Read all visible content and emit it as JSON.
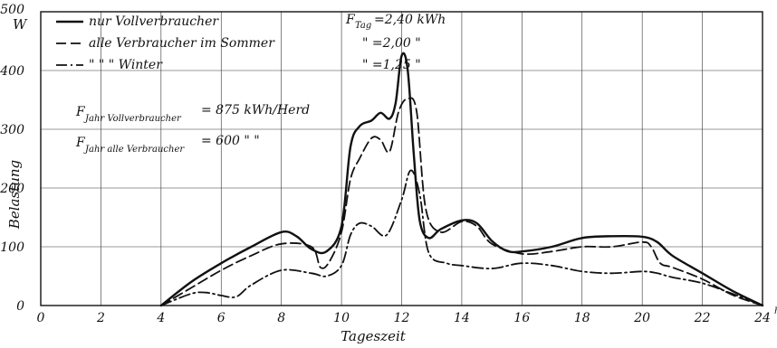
{
  "chart_data": {
    "type": "line",
    "ylabel": "Belastung",
    "yunit": "W",
    "xlabel": "Tageszeit",
    "xunit": "h",
    "xlim": [
      0,
      24
    ],
    "ylim": [
      0,
      500
    ],
    "xticks": [
      0,
      2,
      4,
      6,
      8,
      10,
      12,
      14,
      16,
      18,
      20,
      22,
      24
    ],
    "yticks": [
      0,
      100,
      200,
      300,
      400,
      500
    ],
    "grid": true,
    "legend_position": "top-left",
    "legend": [
      {
        "dash": "solid",
        "label": "nur Vollverbraucher",
        "value": "F",
        "value_sub": "Tag",
        "value_text": "=2,40 kWh"
      },
      {
        "dash": "dashed",
        "label": "alle Verbraucher im Sommer",
        "value_text": "\" =2,00 \""
      },
      {
        "dash": "dashdot",
        "label": "\"           \"           \" Winter",
        "value_text": "\" =1,25 \""
      }
    ],
    "annotations": [
      {
        "main": "F",
        "sub": "Jahr Vollverbraucher",
        "text": "= 875 kWh/Herd"
      },
      {
        "main": "F",
        "sub": "Jahr alle Verbraucher",
        "text": "= 600   \"     \""
      }
    ],
    "series": [
      {
        "dash": "solid",
        "x": [
          4,
          5,
          6,
          7,
          8,
          8.5,
          9,
          9.5,
          10,
          10.3,
          10.6,
          11,
          11.3,
          11.6,
          11.8,
          12,
          12.2,
          12.4,
          12.6,
          12.9,
          13.3,
          14,
          14.5,
          15,
          15.5,
          16,
          17,
          18,
          19,
          20,
          20.5,
          21,
          22,
          23,
          24
        ],
        "y": [
          0,
          40,
          72,
          100,
          125,
          118,
          96,
          92,
          135,
          270,
          305,
          315,
          328,
          318,
          345,
          425,
          402,
          260,
          145,
          115,
          130,
          145,
          140,
          110,
          93,
          92,
          100,
          115,
          118,
          117,
          108,
          85,
          55,
          25,
          0
        ]
      },
      {
        "dash": "dashed",
        "x": [
          4,
          5,
          6,
          7,
          8,
          9,
          9.3,
          9.6,
          10,
          10.3,
          10.6,
          11,
          11.3,
          11.6,
          11.9,
          12.2,
          12.5,
          12.8,
          13.3,
          14,
          14.5,
          15,
          16,
          17,
          18,
          19,
          20,
          20.3,
          20.6,
          21,
          22,
          23,
          24
        ],
        "y": [
          0,
          30,
          60,
          85,
          105,
          100,
          65,
          75,
          125,
          215,
          250,
          285,
          282,
          262,
          330,
          352,
          330,
          165,
          125,
          143,
          135,
          105,
          88,
          92,
          100,
          100,
          108,
          100,
          72,
          65,
          45,
          18,
          0
        ]
      },
      {
        "dash": "dashdot",
        "x": [
          4,
          5,
          5.5,
          6,
          6.5,
          7,
          8,
          9,
          9.5,
          10,
          10.3,
          10.6,
          11,
          11.5,
          12,
          12.3,
          12.6,
          12.9,
          13.5,
          14,
          15,
          16,
          17,
          18,
          19,
          20,
          20.5,
          21,
          22,
          23,
          24
        ],
        "y": [
          0,
          20,
          22,
          17,
          15,
          35,
          60,
          55,
          50,
          68,
          120,
          140,
          135,
          120,
          180,
          230,
          190,
          90,
          72,
          68,
          63,
          72,
          68,
          58,
          55,
          58,
          55,
          48,
          38,
          20,
          0
        ]
      }
    ]
  }
}
